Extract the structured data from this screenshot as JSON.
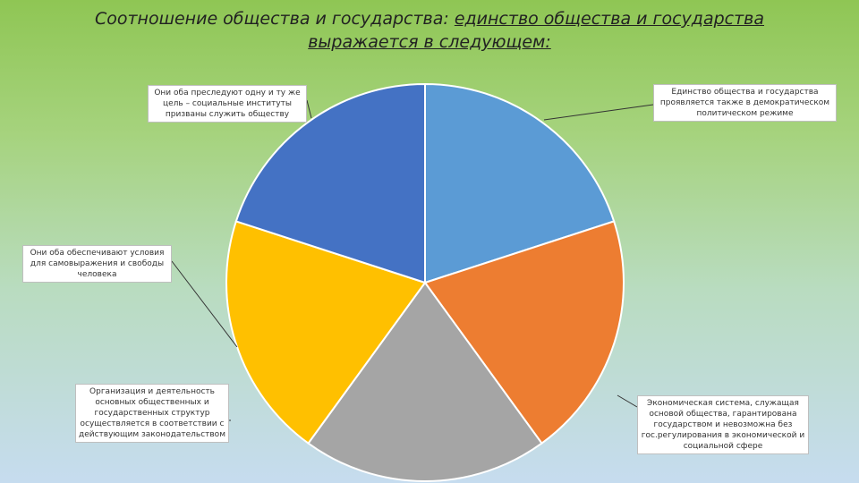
{
  "title": {
    "line1_plain": "Соотношение общества и государства: ",
    "line1_underlined": "единство общества и государства",
    "line2_underlined": "выражается в следующем:"
  },
  "chart_data": {
    "type": "pie",
    "slices": [
      {
        "label": "Единство общества и государства проявляется также в демократическом политическом режиме",
        "value": 20,
        "color": "#5b9bd5"
      },
      {
        "label": "Экономическая система, служащая основой общества, гарантирована государством и невозможна без гос.регулирования в экономической и социальной сфере",
        "value": 20,
        "color": "#ed7d31"
      },
      {
        "label": "Организация и деятельность основных общественных и государственных структур осуществляется в соответствии с действующим законодательством",
        "value": 20,
        "color": "#a5a5a5"
      },
      {
        "label": "Они оба обеспечивают условия для самовыражения и свободы человека",
        "value": 20,
        "color": "#ffc000"
      },
      {
        "label": "Они оба преследуют одну и ту же цель – социальные институты призваны служить обществу",
        "value": 20,
        "color": "#4472c4"
      }
    ]
  }
}
